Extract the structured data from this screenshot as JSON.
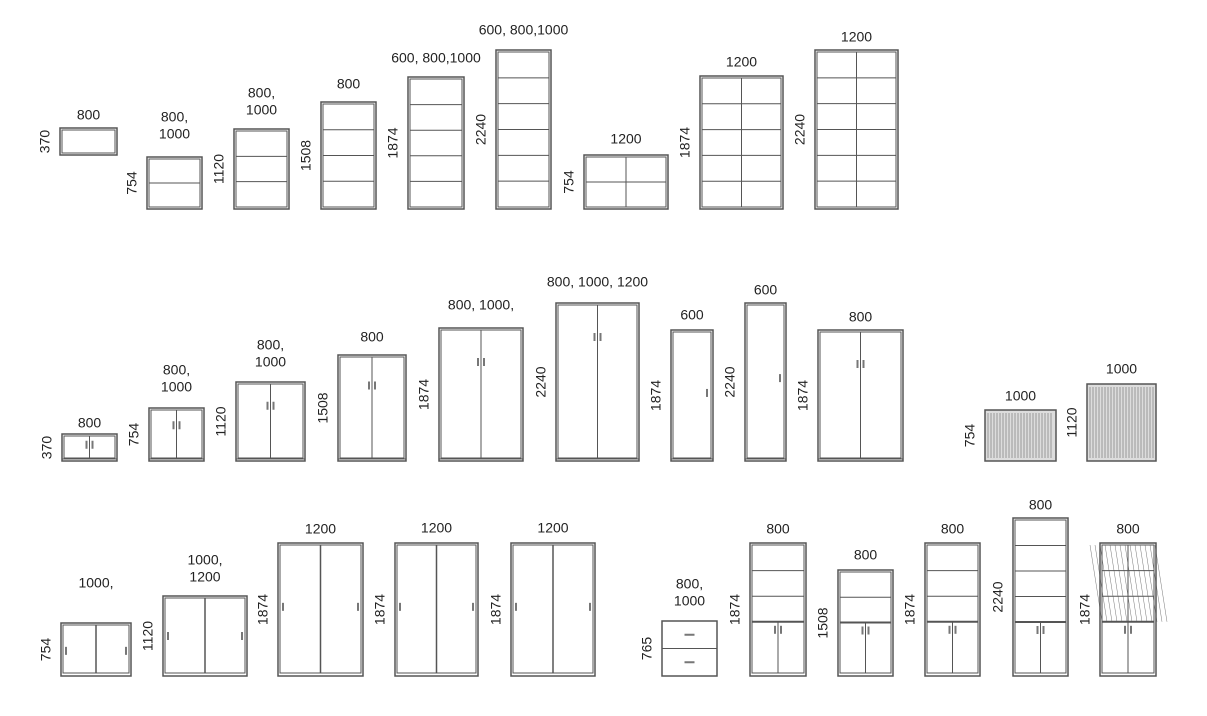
{
  "rows": [
    {
      "items": [
        {
          "width": [
            "800"
          ],
          "height": "370"
        },
        {
          "width": [
            "800,",
            "1000"
          ],
          "height": "754"
        },
        {
          "width": [
            "800,",
            "1000"
          ],
          "height": "1120"
        },
        {
          "width": [
            "800"
          ],
          "height": "1508"
        },
        {
          "width": [
            "600, 800,1000"
          ],
          "height": "1874"
        },
        {
          "width": [
            "600, 800,1000"
          ],
          "height": "2240"
        },
        {
          "width": [
            "1200"
          ],
          "height": "754"
        },
        {
          "width": [
            "1200"
          ],
          "height": "1874"
        },
        {
          "width": [
            "1200"
          ],
          "height": "2240"
        }
      ]
    },
    {
      "items": [
        {
          "width": [
            "800"
          ],
          "height": "370"
        },
        {
          "width": [
            "800,",
            "1000"
          ],
          "height": "754"
        },
        {
          "width": [
            "800,",
            "1000"
          ],
          "height": "1120"
        },
        {
          "width": [
            "800"
          ],
          "height": "1508"
        },
        {
          "width": [
            "800, 1000,"
          ],
          "height": "1874"
        },
        {
          "width": [
            "800, 1000, 1200"
          ],
          "height": "2240"
        },
        {
          "width": [
            "600"
          ],
          "height": "1874"
        },
        {
          "width": [
            "600"
          ],
          "height": "2240"
        },
        {
          "width": [
            "800"
          ],
          "height": "1874"
        },
        {
          "width": [
            "1000"
          ],
          "height": "754"
        },
        {
          "width": [
            "1000"
          ],
          "height": "1120"
        }
      ]
    },
    {
      "items": [
        {
          "width": [
            "1000,"
          ],
          "height": "754"
        },
        {
          "width": [
            "1000,",
            "1200"
          ],
          "height": "1120"
        },
        {
          "width": [
            "1200"
          ],
          "height": "1874"
        },
        {
          "width": [
            "1200"
          ],
          "height": "1874"
        },
        {
          "width": [
            "1200"
          ],
          "height": "1874"
        },
        {
          "width": [
            "800,",
            "1000"
          ],
          "height": "765"
        },
        {
          "width": [
            "800"
          ],
          "height": "1874"
        },
        {
          "width": [
            "800"
          ],
          "height": "1508"
        },
        {
          "width": [
            "800"
          ],
          "height": "1874"
        },
        {
          "width": [
            "800"
          ],
          "height": "2240"
        },
        {
          "width": [
            "800"
          ],
          "height": "1874"
        }
      ]
    }
  ]
}
